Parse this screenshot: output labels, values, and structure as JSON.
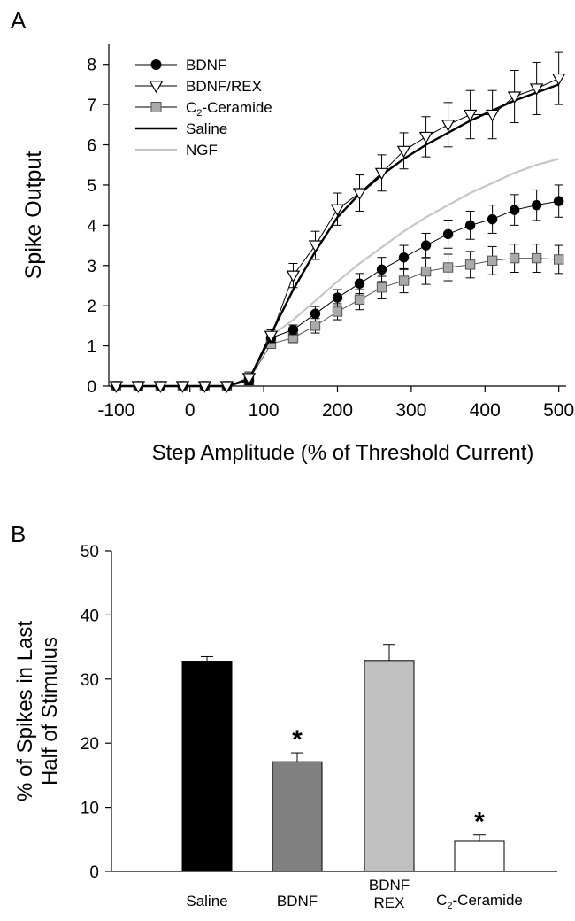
{
  "chart_data": [
    {
      "panel_label": "A",
      "type": "line",
      "title": "",
      "xlabel": "Step Amplitude (% of Threshold Current)",
      "ylabel": "Spike Output",
      "xlim": [
        -110,
        510
      ],
      "ylim": [
        0,
        8.5
      ],
      "xticks": [
        -100,
        0,
        100,
        200,
        300,
        400,
        500
      ],
      "yticks": [
        0,
        1,
        2,
        3,
        4,
        5,
        6,
        7,
        8
      ],
      "grid": false,
      "legend_position": "top-left",
      "x": [
        -100,
        -70,
        -40,
        -10,
        20,
        50,
        80,
        110,
        140,
        170,
        200,
        230,
        260,
        290,
        320,
        350,
        380,
        410,
        440,
        470,
        500
      ],
      "series": [
        {
          "name": "BDNF",
          "marker": "filled-circle",
          "color": "#000000",
          "values": [
            0,
            0,
            0,
            0,
            0,
            0,
            0.15,
            1.2,
            1.4,
            1.8,
            2.2,
            2.55,
            2.9,
            3.2,
            3.5,
            3.78,
            4.0,
            4.15,
            4.38,
            4.5,
            4.6
          ],
          "errors": [
            0.05,
            0.05,
            0.05,
            0.05,
            0.05,
            0.05,
            0.12,
            0.12,
            0.12,
            0.18,
            0.2,
            0.25,
            0.3,
            0.3,
            0.3,
            0.35,
            0.35,
            0.35,
            0.38,
            0.38,
            0.4
          ]
        },
        {
          "name": "BDNF/REX",
          "marker": "open-triangle-down",
          "color": "#000000",
          "values": [
            0,
            0,
            0,
            0,
            0,
            0,
            0.2,
            1.25,
            2.75,
            3.5,
            4.4,
            4.8,
            5.3,
            5.85,
            6.2,
            6.5,
            6.75,
            6.75,
            7.2,
            7.4,
            7.65
          ],
          "errors": [
            0.05,
            0.05,
            0.05,
            0.05,
            0.05,
            0.05,
            0.15,
            0.15,
            0.3,
            0.35,
            0.4,
            0.45,
            0.45,
            0.45,
            0.5,
            0.55,
            0.6,
            0.6,
            0.65,
            0.65,
            0.65
          ]
        },
        {
          "name": "C2-Ceramide",
          "marker": "gray-square",
          "color": "#aaaaaa",
          "values": [
            0,
            0,
            0,
            0,
            0,
            0,
            0.15,
            1.05,
            1.2,
            1.5,
            1.85,
            2.15,
            2.45,
            2.62,
            2.85,
            2.95,
            3.02,
            3.12,
            3.18,
            3.18,
            3.15
          ],
          "errors": [
            0.05,
            0.05,
            0.05,
            0.05,
            0.05,
            0.05,
            0.1,
            0.1,
            0.12,
            0.18,
            0.2,
            0.25,
            0.28,
            0.3,
            0.32,
            0.33,
            0.33,
            0.35,
            0.35,
            0.35,
            0.35
          ]
        },
        {
          "name": "Saline",
          "marker": "none",
          "line": "thick-black",
          "color": "#000000",
          "values": [
            0,
            0,
            0,
            0,
            0,
            0,
            0.15,
            1.3,
            2.4,
            3.35,
            4.2,
            4.78,
            5.25,
            5.65,
            6.0,
            6.3,
            6.6,
            6.85,
            7.1,
            7.3,
            7.5
          ]
        },
        {
          "name": "NGF",
          "marker": "none",
          "line": "light-gray",
          "color": "#c6c6c6",
          "values": [
            0,
            0,
            0,
            0,
            0,
            0,
            0.15,
            1.25,
            1.65,
            2.12,
            2.6,
            3.05,
            3.45,
            3.85,
            4.2,
            4.5,
            4.8,
            5.05,
            5.3,
            5.5,
            5.65
          ]
        }
      ]
    },
    {
      "panel_label": "B",
      "type": "bar",
      "title": "",
      "xlabel": "",
      "ylabel": "% of Spikes in Last Half of Stimulus",
      "ylabel_lines": [
        "% of Spikes in Last",
        "Half of Stimulus"
      ],
      "ylim": [
        0,
        50
      ],
      "yticks": [
        0,
        10,
        20,
        30,
        40,
        50
      ],
      "grid": false,
      "categories": [
        {
          "lines": [
            "Saline"
          ],
          "sub": ""
        },
        {
          "lines": [
            "BDNF"
          ],
          "sub": ""
        },
        {
          "lines": [
            "BDNF",
            "REX"
          ],
          "sub": ""
        },
        {
          "pre": "C",
          "sub": "2",
          "post": "-Ceramide"
        }
      ],
      "values": [
        32.8,
        17.1,
        32.9,
        4.7
      ],
      "errors": [
        0.7,
        1.4,
        2.5,
        1.0
      ],
      "colors": [
        "#000000",
        "#808080",
        "#c0c0c0",
        "#ffffff"
      ],
      "significance": [
        "",
        "*",
        "",
        "*"
      ]
    }
  ]
}
